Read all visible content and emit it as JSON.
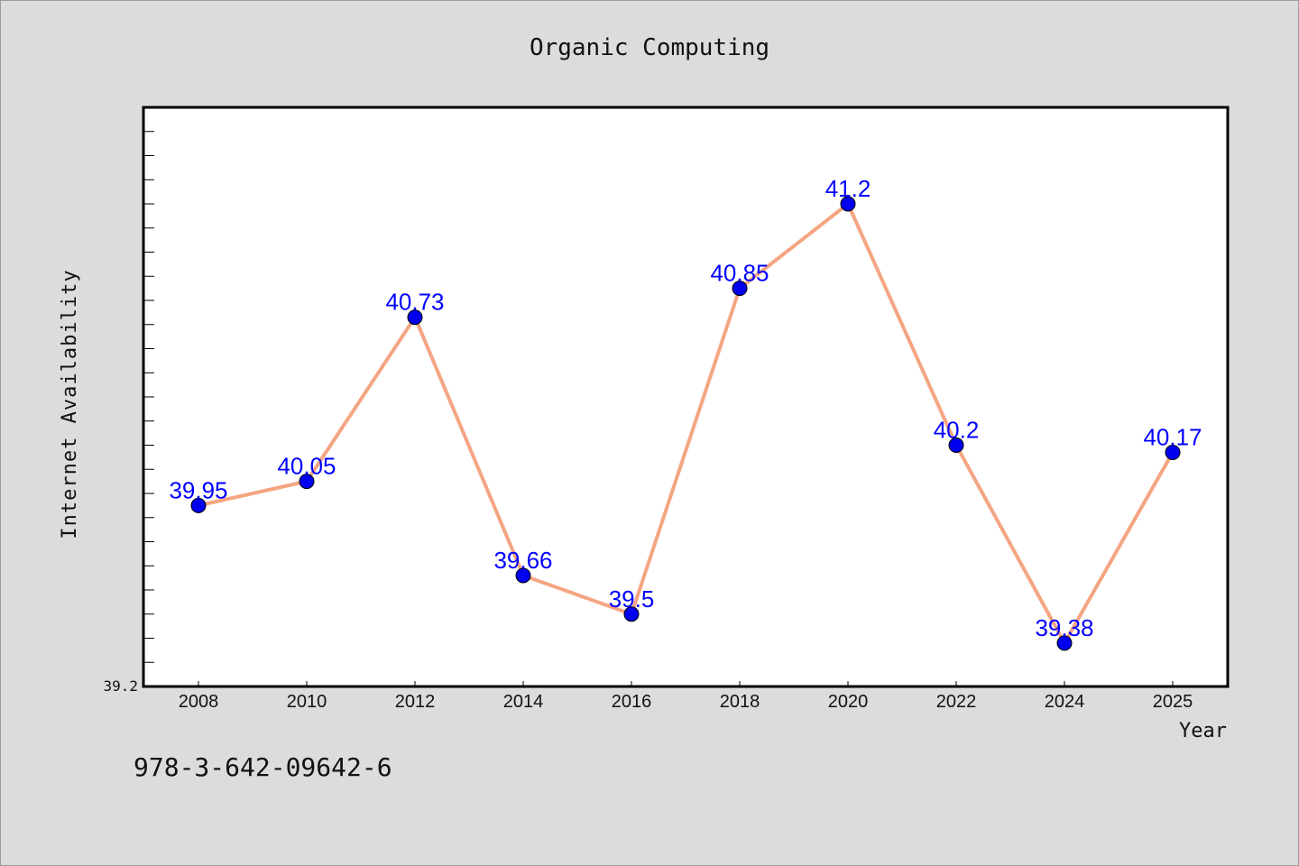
{
  "isbn": "978-3-642-09642-6",
  "chart_data": {
    "type": "line",
    "title": "Organic Computing",
    "xlabel": "Year",
    "ylabel": "Internet Availability",
    "categories": [
      "2008",
      "2010",
      "2012",
      "2014",
      "2016",
      "2018",
      "2020",
      "2022",
      "2024",
      "2025"
    ],
    "series": [
      {
        "values": [
          39.95,
          40.05,
          40.73,
          39.66,
          39.5,
          40.85,
          41.2,
          40.2,
          39.38,
          40.17
        ],
        "labels": [
          "39.95",
          "40.05",
          "40.73",
          "39.66",
          "39.5",
          "40.85",
          "41.2",
          "40.2",
          "39.38",
          "40.17"
        ]
      }
    ],
    "ylim": [
      39.2,
      41.6
    ],
    "ytick_label": "39.2",
    "minor_tick_step": 0.1,
    "grid": false,
    "colors": {
      "line": "#f4a582",
      "marker": "#0000ee",
      "label": "#0000ff",
      "background": "#dcdcdc",
      "plot_area": "#ffffff"
    }
  }
}
